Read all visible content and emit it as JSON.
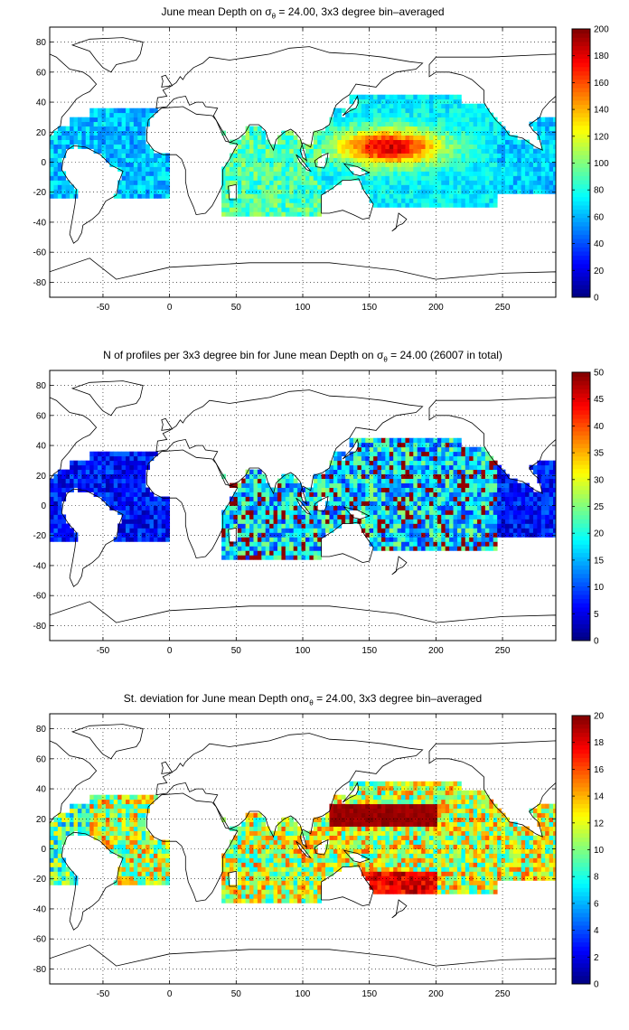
{
  "colors": {
    "jet": [
      "#00008f",
      "#0000ff",
      "#0080ff",
      "#00ffff",
      "#80ff80",
      "#ffff00",
      "#ff8000",
      "#ff0000",
      "#800000"
    ],
    "coast": "#000000",
    "grid": "#000000"
  },
  "chart_data": [
    {
      "type": "heatmap",
      "title_prefix": "June mean Depth on ",
      "title_symbol": "σ",
      "title_sub": "θ",
      "title_suffix": " = 24.00, 3x3 degree bin–averaged",
      "xticks": [
        "-50",
        "0",
        "50",
        "100",
        "150",
        "200",
        "250"
      ],
      "yticks": [
        "80",
        "60",
        "40",
        "20",
        "0",
        "-20",
        "-40",
        "-60",
        "-80"
      ],
      "xlim": [
        -90,
        290
      ],
      "ylim": [
        -90,
        90
      ],
      "grid": true,
      "colorbar": {
        "min": 0,
        "max": 200,
        "ticks": [
          "200",
          "180",
          "160",
          "140",
          "120",
          "100",
          "80",
          "60",
          "40",
          "20",
          "0"
        ]
      },
      "bin_size_deg": 3,
      "field": "depth"
    },
    {
      "type": "heatmap",
      "title_prefix": "N of profiles per 3x3 degree bin for June mean Depth on ",
      "title_symbol": "σ",
      "title_sub": "θ",
      "title_suffix": " = 24.00 (26007 in total)",
      "xticks": [
        "-50",
        "0",
        "50",
        "100",
        "150",
        "200",
        "250"
      ],
      "yticks": [
        "80",
        "60",
        "40",
        "20",
        "0",
        "-20",
        "-40",
        "-60",
        "-80"
      ],
      "xlim": [
        -90,
        290
      ],
      "ylim": [
        -90,
        90
      ],
      "grid": true,
      "colorbar": {
        "min": 0,
        "max": 50,
        "ticks": [
          "50",
          "45",
          "40",
          "35",
          "30",
          "25",
          "20",
          "15",
          "10",
          "5",
          "0"
        ]
      },
      "bin_size_deg": 3,
      "field": "count"
    },
    {
      "type": "heatmap",
      "title_prefix": "St. deviation for June mean Depth on",
      "title_symbol": "σ",
      "title_sub": "θ",
      "title_suffix": " = 24.00, 3x3 degree bin–averaged",
      "xticks": [
        "-50",
        "0",
        "50",
        "100",
        "150",
        "200",
        "250"
      ],
      "yticks": [
        "80",
        "60",
        "40",
        "20",
        "0",
        "-20",
        "-40",
        "-60",
        "-80"
      ],
      "xlim": [
        -90,
        290
      ],
      "ylim": [
        -90,
        90
      ],
      "grid": true,
      "colorbar": {
        "min": 0,
        "max": 20,
        "ticks": [
          "20",
          "18",
          "16",
          "14",
          "12",
          "10",
          "8",
          "6",
          "4",
          "2",
          "0"
        ]
      },
      "bin_size_deg": 3,
      "field": "std"
    }
  ]
}
